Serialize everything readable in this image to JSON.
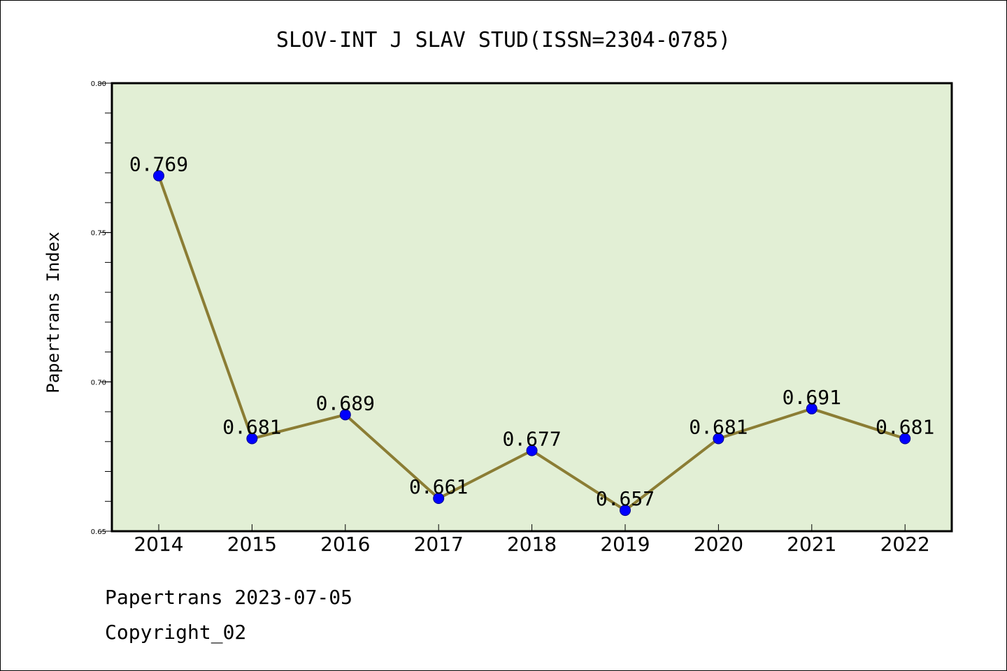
{
  "chart_data": {
    "type": "line",
    "title": "SLOV-INT J SLAV STUD(ISSN=2304-0785)",
    "xlabel": "",
    "ylabel": "Papertrans Index",
    "x": [
      "2014",
      "2015",
      "2016",
      "2017",
      "2018",
      "2019",
      "2020",
      "2021",
      "2022"
    ],
    "values": [
      0.769,
      0.681,
      0.689,
      0.661,
      0.677,
      0.657,
      0.681,
      0.691,
      0.681
    ],
    "data_labels": [
      "0.769",
      "0.681",
      "0.689",
      "0.661",
      "0.677",
      "0.657",
      "0.681",
      "0.691",
      "0.681"
    ],
    "ylim": [
      0.65,
      0.8
    ],
    "yticks": [
      0.65,
      0.7,
      0.75,
      0.8
    ],
    "ytick_labels": [
      "0.65",
      "0.70",
      "0.75",
      "0.80"
    ],
    "grid": false,
    "colors": {
      "plot_background": "#e2efd5",
      "line": "#8b7d34",
      "marker": "#0000ff"
    }
  },
  "footer": {
    "line1": "Papertrans 2023-07-05",
    "line2": "Copyright_02"
  }
}
